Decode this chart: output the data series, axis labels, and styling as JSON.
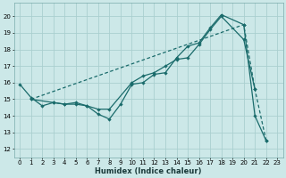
{
  "bg_color": "#cce8e8",
  "grid_color": "#aacfcf",
  "line_color": "#1a6b6b",
  "xlabel": "Humidex (Indice chaleur)",
  "xlim": [
    -0.5,
    23.5
  ],
  "ylim": [
    11.5,
    20.8
  ],
  "yticks": [
    12,
    13,
    14,
    15,
    16,
    17,
    18,
    19,
    20
  ],
  "xticks": [
    0,
    1,
    2,
    3,
    4,
    5,
    6,
    7,
    8,
    9,
    10,
    11,
    12,
    13,
    14,
    15,
    16,
    17,
    18,
    19,
    20,
    21,
    22,
    23
  ],
  "line1_x": [
    0,
    1,
    2,
    3,
    4,
    5,
    6,
    7,
    8,
    9,
    10,
    11,
    12,
    13,
    14,
    15,
    16,
    17,
    18,
    20,
    21,
    22
  ],
  "line1_y": [
    15.9,
    15.1,
    14.6,
    14.8,
    14.7,
    14.7,
    14.6,
    14.1,
    13.8,
    14.7,
    15.9,
    16.0,
    16.5,
    16.6,
    17.5,
    18.2,
    18.4,
    19.3,
    20.1,
    19.5,
    14.0,
    12.5
  ],
  "line2_x": [
    1,
    3,
    4,
    5,
    6,
    7,
    8,
    10,
    11,
    12,
    13,
    14,
    15,
    16,
    17,
    18,
    20,
    21
  ],
  "line2_y": [
    15.0,
    14.8,
    14.7,
    14.8,
    14.6,
    14.4,
    14.4,
    16.0,
    16.4,
    16.6,
    17.0,
    17.4,
    17.5,
    18.3,
    19.2,
    20.0,
    18.6,
    15.6
  ],
  "line3_x": [
    1,
    20,
    21,
    22
  ],
  "line3_y": [
    15.0,
    19.5,
    15.6,
    12.5
  ]
}
